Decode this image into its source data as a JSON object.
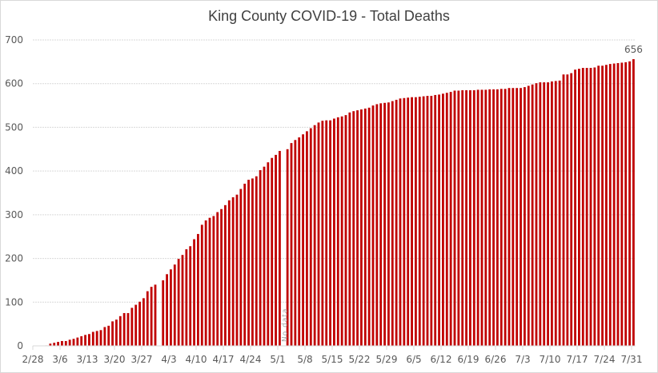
{
  "chart_data": {
    "type": "bar",
    "title": "King County COVID-19 - Total Deaths",
    "xlabel": "",
    "ylabel": "",
    "ylim": [
      0,
      700
    ],
    "yticks": [
      0,
      100,
      200,
      300,
      400,
      500,
      600,
      700
    ],
    "grid": true,
    "legend": "none",
    "bar_color": "#C00000",
    "start_date": "2/28",
    "xtick_labels": [
      "2/28",
      "3/6",
      "3/13",
      "3/20",
      "3/27",
      "4/3",
      "4/10",
      "4/17",
      "4/24",
      "5/1",
      "5/8",
      "5/15",
      "5/22",
      "5/29",
      "6/5",
      "6/12",
      "6/19",
      "6/26",
      "7/3",
      "7/10",
      "7/17",
      "7/24",
      "7/31"
    ],
    "annotations": [
      {
        "text": "656",
        "at": "last"
      },
      {
        "text": "No data",
        "at": "5/2"
      }
    ],
    "values": [
      0,
      0,
      0,
      1,
      5,
      7,
      9,
      11,
      11,
      14,
      16,
      19,
      22,
      25,
      27,
      32,
      34,
      36,
      43,
      46,
      56,
      60,
      68,
      75,
      75,
      87,
      94,
      101,
      109,
      125,
      135,
      140,
      null,
      150,
      164,
      175,
      186,
      199,
      208,
      221,
      228,
      244,
      256,
      277,
      287,
      293,
      297,
      306,
      313,
      322,
      333,
      340,
      346,
      359,
      371,
      380,
      383,
      388,
      402,
      410,
      420,
      430,
      437,
      446,
      null,
      450,
      464,
      471,
      477,
      484,
      491,
      498,
      505,
      511,
      515,
      516,
      516,
      520,
      523,
      525,
      528,
      534,
      537,
      539,
      541,
      543,
      545,
      550,
      553,
      555,
      556,
      557,
      560,
      563,
      566,
      567,
      568,
      569,
      569,
      570,
      571,
      572,
      572,
      574,
      575,
      577,
      579,
      581,
      584,
      584,
      585,
      585,
      585,
      585,
      586,
      586,
      586,
      587,
      587,
      587,
      588,
      588,
      590,
      590,
      590,
      590,
      592,
      595,
      598,
      601,
      603,
      603,
      603,
      605,
      606,
      607,
      621,
      621,
      624,
      632,
      634,
      636,
      636,
      636,
      637,
      641,
      641,
      643,
      645,
      646,
      647,
      648,
      649,
      651,
      656
    ]
  }
}
